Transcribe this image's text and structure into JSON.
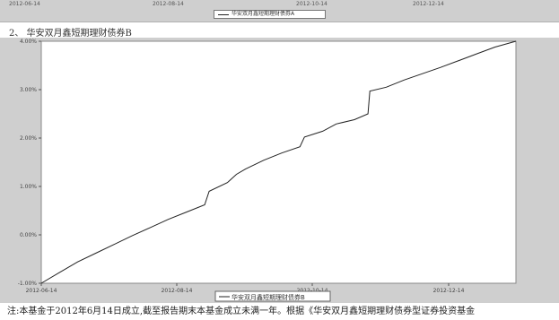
{
  "top_fragment": {
    "ticks": [
      "2012-06-14",
      "2012-08-14",
      "2012-10-14",
      "2012-12-14"
    ],
    "legend_label": "华安双月鑫短期理财债券A"
  },
  "section_title": "2、 华安双月鑫短期理财债券B",
  "chart_data": {
    "type": "line",
    "title": "",
    "xlabel": "",
    "ylabel": "",
    "x_ticks": [
      "2012-06-14",
      "2012-08-14",
      "2012-10-14",
      "2012-12-14"
    ],
    "y_ticks": [
      "-1.00%",
      "0.00%",
      "1.00%",
      "2.00%",
      "3.00%",
      "4.00%"
    ],
    "ylim": [
      -1.0,
      4.0
    ],
    "grid": false,
    "legend_position": "bottom",
    "series": [
      {
        "name": "华安双月鑫短期理财债券B",
        "color": "#222222",
        "x": [
          0,
          20,
          40,
          60,
          80,
          100,
          120,
          140,
          160,
          180,
          185,
          205,
          215,
          225,
          245,
          265,
          285,
          290,
          310,
          325,
          345,
          360,
          362,
          380,
          400,
          420,
          440,
          460,
          480,
          500,
          523
        ],
        "y": [
          -1.0,
          -0.78,
          -0.56,
          -0.38,
          -0.2,
          -0.02,
          0.15,
          0.32,
          0.47,
          0.62,
          0.9,
          1.08,
          1.25,
          1.36,
          1.54,
          1.69,
          1.82,
          2.02,
          2.14,
          2.29,
          2.38,
          2.5,
          2.97,
          3.05,
          3.2,
          3.33,
          3.46,
          3.6,
          3.74,
          3.88,
          4.0
        ]
      }
    ]
  },
  "footnote": "注:本基金于2012年6月14日成立,截至报告期末本基金成立未满一年。根据《华安双月鑫短期理财债券型证券投资基金"
}
